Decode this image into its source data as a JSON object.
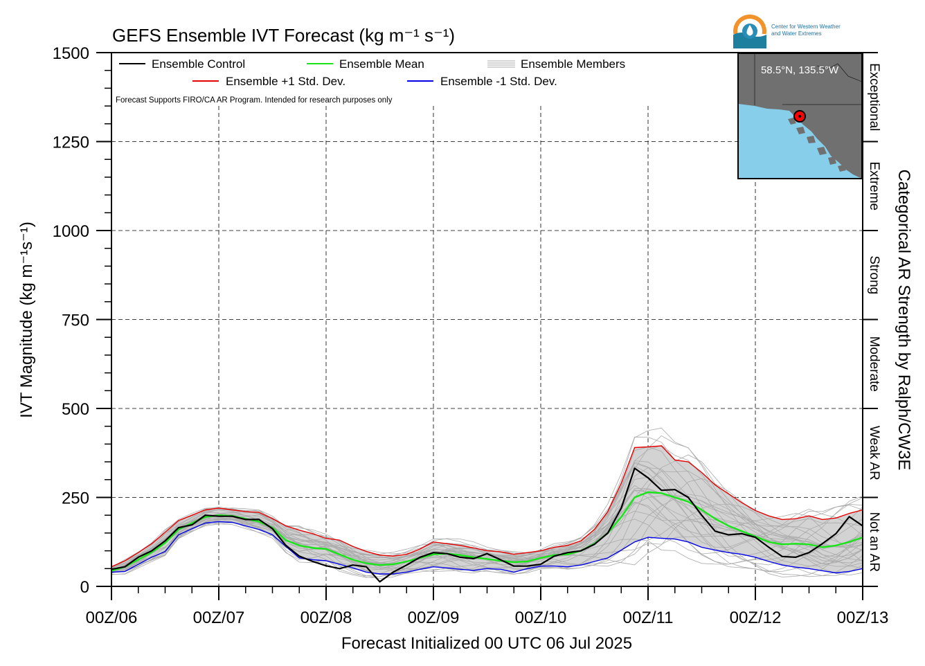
{
  "chart_data": {
    "type": "line",
    "title": "GEFS Ensemble IVT Forecast (kg m⁻¹ s⁻¹)",
    "xlabel": "Forecast Initialized 00 UTC 06 Jul 2025",
    "ylabel": "IVT Magnitude (kg m⁻¹s⁻¹)",
    "right_label": "Categorical AR Strength by Ralph/CW3E",
    "note": "Forecast Supports FIRO/CA AR Program. Intended for research purposes only",
    "ylim": [
      0,
      1500
    ],
    "yticks": [
      0,
      250,
      500,
      750,
      1000,
      1250,
      1500
    ],
    "xlim": [
      0,
      168
    ],
    "x_unit": "forecast hour",
    "xticks": [
      {
        "x": 0,
        "label": "00Z/06"
      },
      {
        "x": 24,
        "label": "00Z/07"
      },
      {
        "x": 48,
        "label": "00Z/08"
      },
      {
        "x": 72,
        "label": "00Z/09"
      },
      {
        "x": 96,
        "label": "00Z/10"
      },
      {
        "x": 120,
        "label": "00Z/11"
      },
      {
        "x": 144,
        "label": "00Z/12"
      },
      {
        "x": 168,
        "label": "00Z/13"
      }
    ],
    "categories_right": [
      {
        "label": "Not an AR",
        "from": 0,
        "to": 250
      },
      {
        "label": "Weak AR",
        "from": 250,
        "to": 500
      },
      {
        "label": "Moderate",
        "from": 500,
        "to": 750
      },
      {
        "label": "Strong",
        "from": 750,
        "to": 1000
      },
      {
        "label": "Extreme",
        "from": 1000,
        "to": 1250
      },
      {
        "label": "Exceptional",
        "from": 1250,
        "to": 1500
      }
    ],
    "legend": [
      {
        "label": "Ensemble Control",
        "color": "#000000"
      },
      {
        "label": "Ensemble Mean",
        "color": "#19e619"
      },
      {
        "label": "Ensemble Members",
        "color": "#aaaaaa"
      },
      {
        "label": "Ensemble +1 Std. Dev.",
        "color": "#e60000"
      },
      {
        "label": "Ensemble -1 Std. Dev.",
        "color": "#0000e6"
      }
    ],
    "x": [
      0,
      3,
      6,
      9,
      12,
      15,
      18,
      21,
      24,
      27,
      30,
      33,
      36,
      39,
      42,
      45,
      48,
      51,
      54,
      57,
      60,
      63,
      66,
      69,
      72,
      75,
      78,
      81,
      84,
      87,
      90,
      93,
      96,
      99,
      102,
      105,
      108,
      111,
      114,
      117,
      120,
      123,
      126,
      129,
      132,
      135,
      138,
      141,
      144,
      147,
      150,
      153,
      156,
      159,
      162,
      165,
      168
    ],
    "series": [
      {
        "name": "Ensemble Control",
        "color": "#000000",
        "values": [
          48,
          55,
          82,
          100,
          128,
          165,
          173,
          200,
          197,
          197,
          188,
          188,
          162,
          115,
          85,
          70,
          58,
          50,
          60,
          55,
          13,
          40,
          60,
          82,
          95,
          92,
          82,
          78,
          92,
          75,
          57,
          57,
          62,
          85,
          95,
          100,
          118,
          150,
          220,
          332,
          305,
          270,
          272,
          250,
          200,
          155,
          145,
          148,
          138,
          110,
          84,
          82,
          95,
          120,
          148,
          196,
          170
        ]
      },
      {
        "name": "Ensemble Mean",
        "color": "#19e619",
        "values": [
          44,
          55,
          75,
          96,
          122,
          160,
          178,
          195,
          200,
          198,
          190,
          182,
          165,
          130,
          115,
          108,
          105,
          90,
          75,
          65,
          60,
          62,
          70,
          80,
          90,
          92,
          88,
          82,
          77,
          72,
          68,
          70,
          80,
          88,
          90,
          100,
          120,
          150,
          195,
          250,
          265,
          262,
          250,
          238,
          215,
          190,
          170,
          155,
          140,
          125,
          118,
          120,
          118,
          110,
          115,
          125,
          138
        ]
      },
      {
        "name": "Ensemble +1 Std. Dev.",
        "color": "#e60000",
        "values": [
          55,
          72,
          95,
          120,
          152,
          185,
          200,
          215,
          220,
          215,
          210,
          208,
          190,
          170,
          158,
          148,
          135,
          130,
          112,
          98,
          88,
          85,
          90,
          105,
          125,
          120,
          115,
          108,
          100,
          97,
          90,
          95,
          100,
          110,
          115,
          128,
          160,
          210,
          290,
          390,
          392,
          395,
          355,
          350,
          320,
          285,
          260,
          235,
          213,
          198,
          188,
          190,
          198,
          188,
          192,
          205,
          215
        ]
      },
      {
        "name": "Ensemble -1 Std. Dev.",
        "color": "#0000e6",
        "values": [
          40,
          42,
          62,
          82,
          98,
          145,
          162,
          178,
          182,
          180,
          170,
          160,
          145,
          112,
          80,
          75,
          72,
          62,
          52,
          40,
          35,
          35,
          40,
          48,
          55,
          52,
          48,
          45,
          50,
          48,
          40,
          50,
          57,
          57,
          55,
          60,
          70,
          80,
          102,
          125,
          138,
          135,
          133,
          125,
          110,
          102,
          95,
          90,
          82,
          70,
          60,
          54,
          50,
          44,
          38,
          42,
          50
        ]
      }
    ]
  },
  "inset_map": {
    "label": "58.5°N, 135.5°W",
    "land_color": "#707070",
    "water_color": "#87ceeb",
    "marker_color": "#ff0000"
  },
  "logo": {
    "line1": "Center for Western Weather",
    "line2": "and Water Extremes"
  }
}
